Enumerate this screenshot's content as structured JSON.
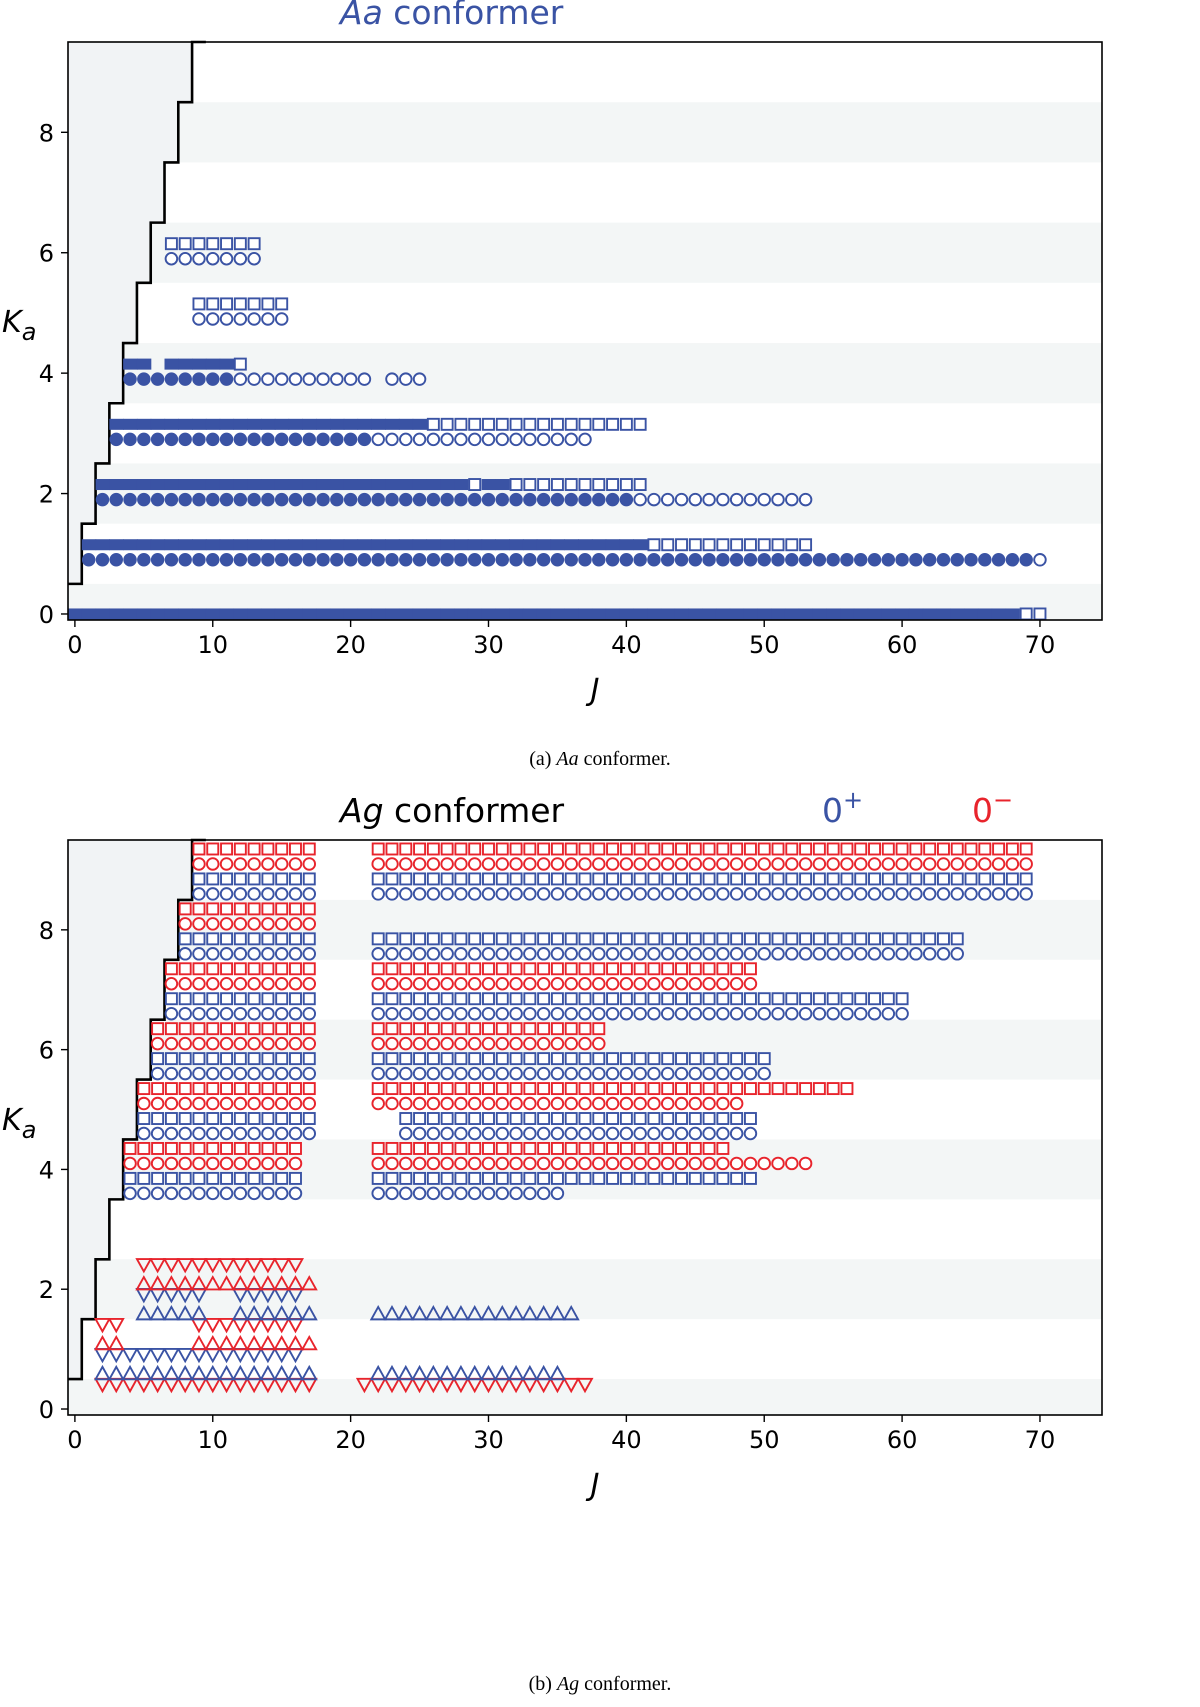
{
  "colors": {
    "blue": "#3a53a4",
    "red": "#e8242c",
    "band": "#f3f6f6",
    "left_region": "#f1f3f5"
  },
  "chart_data": [
    {
      "type": "scatter",
      "title_italic": "Aa",
      "title_rest": " conformer",
      "xlabel": "J",
      "ylabel_main": "K",
      "ylabel_sub": "a",
      "xlim": [
        -0.5,
        74.5
      ],
      "ylim": [
        -0.1,
        9.5
      ],
      "xticks": [
        0,
        10,
        20,
        30,
        40,
        50,
        60,
        70
      ],
      "yticks": [
        0,
        2,
        4,
        6,
        8
      ],
      "boundary_steps": [
        [
          0,
          0.5
        ],
        [
          1,
          1.5
        ],
        [
          2,
          2.5
        ],
        [
          3,
          3.5
        ],
        [
          4,
          4.5
        ],
        [
          5,
          5.5
        ],
        [
          6,
          6.5
        ],
        [
          7,
          7.5
        ],
        [
          8,
          8.5
        ],
        [
          9,
          9.5
        ]
      ],
      "marks": [
        {
          "m": "sq",
          "c": "blue",
          "f": 1,
          "y": 0,
          "from": 0,
          "to": 68
        },
        {
          "m": "sq",
          "c": "blue",
          "f": 0,
          "y": 0,
          "from": 69,
          "to": 70
        },
        {
          "m": "ci",
          "c": "blue",
          "f": 1,
          "y": 0.9,
          "from": 1,
          "to": 69
        },
        {
          "m": "ci",
          "c": "blue",
          "f": 0,
          "y": 0.9,
          "from": 70,
          "to": 70
        },
        {
          "m": "sq",
          "c": "blue",
          "f": 1,
          "y": 1.15,
          "from": 1,
          "to": 41
        },
        {
          "m": "sq",
          "c": "blue",
          "f": 0,
          "y": 1.15,
          "from": 42,
          "to": 53
        },
        {
          "m": "ci",
          "c": "blue",
          "f": 1,
          "y": 1.9,
          "from": 2,
          "to": 40
        },
        {
          "m": "ci",
          "c": "blue",
          "f": 0,
          "y": 1.9,
          "from": 41,
          "to": 53
        },
        {
          "m": "sq",
          "c": "blue",
          "f": 1,
          "y": 2.15,
          "from": 2,
          "to": 28
        },
        {
          "m": "sq",
          "c": "blue",
          "f": 0,
          "y": 2.15,
          "from": 29,
          "to": 29
        },
        {
          "m": "sq",
          "c": "blue",
          "f": 1,
          "y": 2.15,
          "from": 30,
          "to": 31
        },
        {
          "m": "sq",
          "c": "blue",
          "f": 0,
          "y": 2.15,
          "from": 32,
          "to": 41
        },
        {
          "m": "ci",
          "c": "blue",
          "f": 1,
          "y": 2.9,
          "from": 3,
          "to": 21
        },
        {
          "m": "ci",
          "c": "blue",
          "f": 0,
          "y": 2.9,
          "from": 22,
          "to": 37
        },
        {
          "m": "sq",
          "c": "blue",
          "f": 1,
          "y": 3.15,
          "from": 3,
          "to": 25
        },
        {
          "m": "sq",
          "c": "blue",
          "f": 0,
          "y": 3.15,
          "from": 26,
          "to": 41
        },
        {
          "m": "ci",
          "c": "blue",
          "f": 1,
          "y": 3.9,
          "from": 4,
          "to": 11
        },
        {
          "m": "ci",
          "c": "blue",
          "f": 0,
          "y": 3.9,
          "from": 12,
          "to": 21
        },
        {
          "m": "ci",
          "c": "blue",
          "f": 0,
          "y": 3.9,
          "from": 23,
          "to": 25
        },
        {
          "m": "sq",
          "c": "blue",
          "f": 1,
          "y": 4.15,
          "from": 4,
          "to": 5
        },
        {
          "m": "sq",
          "c": "blue",
          "f": 1,
          "y": 4.15,
          "from": 7,
          "to": 11
        },
        {
          "m": "sq",
          "c": "blue",
          "f": 0,
          "y": 4.15,
          "from": 12,
          "to": 12
        },
        {
          "m": "ci",
          "c": "blue",
          "f": 0,
          "y": 4.9,
          "from": 9,
          "to": 15
        },
        {
          "m": "sq",
          "c": "blue",
          "f": 0,
          "y": 5.15,
          "from": 9,
          "to": 15
        },
        {
          "m": "ci",
          "c": "blue",
          "f": 0,
          "y": 5.9,
          "from": 7,
          "to": 13
        },
        {
          "m": "sq",
          "c": "blue",
          "f": 0,
          "y": 6.15,
          "from": 7,
          "to": 13
        }
      ],
      "caption_prefix": "(a) ",
      "caption_italic": "Aa",
      "caption_rest": " conformer."
    },
    {
      "type": "scatter",
      "title_italic": "Ag",
      "title_rest": " conformer",
      "legend": [
        {
          "label": "0",
          "sup": "+",
          "color": "blue"
        },
        {
          "label": "0",
          "sup": "−",
          "color": "red"
        }
      ],
      "xlabel": "J",
      "ylabel_main": "K",
      "ylabel_sub": "a",
      "xlim": [
        -0.5,
        74.5
      ],
      "ylim": [
        -0.1,
        9.5
      ],
      "xticks": [
        0,
        10,
        20,
        30,
        40,
        50,
        60,
        70
      ],
      "yticks": [
        0,
        2,
        4,
        6,
        8
      ],
      "boundary_steps": [
        [
          0,
          0.5
        ],
        [
          1,
          1.5
        ],
        [
          2,
          2.5
        ],
        [
          3,
          3.5
        ],
        [
          4,
          4.5
        ],
        [
          5,
          5.5
        ],
        [
          6,
          6.5
        ],
        [
          7,
          7.5
        ],
        [
          8,
          8.5
        ],
        [
          9,
          9.5
        ]
      ],
      "marks": [
        {
          "m": "td",
          "c": "red",
          "f": 0,
          "y": 0.4,
          "from": 2,
          "to": 17
        },
        {
          "m": "td",
          "c": "red",
          "f": 0,
          "y": 0.4,
          "from": 21,
          "to": 37
        },
        {
          "m": "tu",
          "c": "blue",
          "f": 0,
          "y": 0.6,
          "from": 2,
          "to": 17
        },
        {
          "m": "tu",
          "c": "blue",
          "f": 0,
          "y": 0.6,
          "from": 22,
          "to": 35
        },
        {
          "m": "td",
          "c": "blue",
          "f": 0,
          "y": 0.9,
          "from": 2,
          "to": 16
        },
        {
          "m": "tu",
          "c": "red",
          "f": 0,
          "y": 1.1,
          "from": 2,
          "to": 3
        },
        {
          "m": "tu",
          "c": "red",
          "f": 0,
          "y": 1.1,
          "from": 9,
          "to": 17
        },
        {
          "m": "td",
          "c": "red",
          "f": 0,
          "y": 1.4,
          "from": 2,
          "to": 3
        },
        {
          "m": "td",
          "c": "red",
          "f": 0,
          "y": 1.4,
          "from": 9,
          "to": 16
        },
        {
          "m": "tu",
          "c": "blue",
          "f": 0,
          "y": 1.6,
          "from": 5,
          "to": 9
        },
        {
          "m": "tu",
          "c": "blue",
          "f": 0,
          "y": 1.6,
          "from": 12,
          "to": 17
        },
        {
          "m": "tu",
          "c": "blue",
          "f": 0,
          "y": 1.6,
          "from": 22,
          "to": 36
        },
        {
          "m": "td",
          "c": "blue",
          "f": 0,
          "y": 1.9,
          "from": 5,
          "to": 9
        },
        {
          "m": "td",
          "c": "blue",
          "f": 0,
          "y": 1.9,
          "from": 12,
          "to": 16
        },
        {
          "m": "tu",
          "c": "red",
          "f": 0,
          "y": 2.1,
          "from": 5,
          "to": 17
        },
        {
          "m": "td",
          "c": "red",
          "f": 0,
          "y": 2.4,
          "from": 5,
          "to": 16
        },
        {
          "m": "ci",
          "c": "blue",
          "f": 0,
          "y": 3.6,
          "from": 4,
          "to": 16
        },
        {
          "m": "ci",
          "c": "blue",
          "f": 0,
          "y": 3.6,
          "from": 22,
          "to": 35
        },
        {
          "m": "sq",
          "c": "blue",
          "f": 0,
          "y": 3.85,
          "from": 4,
          "to": 16
        },
        {
          "m": "sq",
          "c": "blue",
          "f": 0,
          "y": 3.85,
          "from": 22,
          "to": 49
        },
        {
          "m": "ci",
          "c": "red",
          "f": 0,
          "y": 4.1,
          "from": 4,
          "to": 16
        },
        {
          "m": "ci",
          "c": "red",
          "f": 0,
          "y": 4.1,
          "from": 22,
          "to": 53
        },
        {
          "m": "sq",
          "c": "red",
          "f": 0,
          "y": 4.35,
          "from": 4,
          "to": 16
        },
        {
          "m": "sq",
          "c": "red",
          "f": 0,
          "y": 4.35,
          "from": 22,
          "to": 47
        },
        {
          "m": "ci",
          "c": "blue",
          "f": 0,
          "y": 4.6,
          "from": 5,
          "to": 17
        },
        {
          "m": "ci",
          "c": "blue",
          "f": 0,
          "y": 4.6,
          "from": 24,
          "to": 49
        },
        {
          "m": "sq",
          "c": "blue",
          "f": 0,
          "y": 4.85,
          "from": 5,
          "to": 17
        },
        {
          "m": "sq",
          "c": "blue",
          "f": 0,
          "y": 4.85,
          "from": 24,
          "to": 49
        },
        {
          "m": "ci",
          "c": "red",
          "f": 0,
          "y": 5.1,
          "from": 5,
          "to": 17
        },
        {
          "m": "ci",
          "c": "red",
          "f": 0,
          "y": 5.1,
          "from": 22,
          "to": 48
        },
        {
          "m": "sq",
          "c": "red",
          "f": 0,
          "y": 5.35,
          "from": 5,
          "to": 17
        },
        {
          "m": "sq",
          "c": "red",
          "f": 0,
          "y": 5.35,
          "from": 22,
          "to": 56
        },
        {
          "m": "ci",
          "c": "blue",
          "f": 0,
          "y": 5.6,
          "from": 6,
          "to": 17
        },
        {
          "m": "ci",
          "c": "blue",
          "f": 0,
          "y": 5.6,
          "from": 22,
          "to": 50
        },
        {
          "m": "sq",
          "c": "blue",
          "f": 0,
          "y": 5.85,
          "from": 6,
          "to": 17
        },
        {
          "m": "sq",
          "c": "blue",
          "f": 0,
          "y": 5.85,
          "from": 22,
          "to": 50
        },
        {
          "m": "ci",
          "c": "red",
          "f": 0,
          "y": 6.1,
          "from": 6,
          "to": 17
        },
        {
          "m": "ci",
          "c": "red",
          "f": 0,
          "y": 6.1,
          "from": 22,
          "to": 38
        },
        {
          "m": "sq",
          "c": "red",
          "f": 0,
          "y": 6.35,
          "from": 6,
          "to": 17
        },
        {
          "m": "sq",
          "c": "red",
          "f": 0,
          "y": 6.35,
          "from": 22,
          "to": 38
        },
        {
          "m": "ci",
          "c": "blue",
          "f": 0,
          "y": 6.6,
          "from": 7,
          "to": 17
        },
        {
          "m": "ci",
          "c": "blue",
          "f": 0,
          "y": 6.6,
          "from": 22,
          "to": 60
        },
        {
          "m": "sq",
          "c": "blue",
          "f": 0,
          "y": 6.85,
          "from": 7,
          "to": 17
        },
        {
          "m": "sq",
          "c": "blue",
          "f": 0,
          "y": 6.85,
          "from": 22,
          "to": 60
        },
        {
          "m": "ci",
          "c": "red",
          "f": 0,
          "y": 7.1,
          "from": 7,
          "to": 17
        },
        {
          "m": "ci",
          "c": "red",
          "f": 0,
          "y": 7.1,
          "from": 22,
          "to": 49
        },
        {
          "m": "sq",
          "c": "red",
          "f": 0,
          "y": 7.35,
          "from": 7,
          "to": 17
        },
        {
          "m": "sq",
          "c": "red",
          "f": 0,
          "y": 7.35,
          "from": 22,
          "to": 49
        },
        {
          "m": "ci",
          "c": "blue",
          "f": 0,
          "y": 7.6,
          "from": 8,
          "to": 17
        },
        {
          "m": "ci",
          "c": "blue",
          "f": 0,
          "y": 7.6,
          "from": 22,
          "to": 64
        },
        {
          "m": "sq",
          "c": "blue",
          "f": 0,
          "y": 7.85,
          "from": 8,
          "to": 17
        },
        {
          "m": "sq",
          "c": "blue",
          "f": 0,
          "y": 7.85,
          "from": 22,
          "to": 64
        },
        {
          "m": "ci",
          "c": "red",
          "f": 0,
          "y": 8.1,
          "from": 8,
          "to": 17
        },
        {
          "m": "sq",
          "c": "red",
          "f": 0,
          "y": 8.35,
          "from": 8,
          "to": 17
        },
        {
          "m": "ci",
          "c": "blue",
          "f": 0,
          "y": 8.6,
          "from": 9,
          "to": 17
        },
        {
          "m": "ci",
          "c": "blue",
          "f": 0,
          "y": 8.6,
          "from": 22,
          "to": 69
        },
        {
          "m": "sq",
          "c": "blue",
          "f": 0,
          "y": 8.85,
          "from": 9,
          "to": 17
        },
        {
          "m": "sq",
          "c": "blue",
          "f": 0,
          "y": 8.85,
          "from": 22,
          "to": 69
        },
        {
          "m": "ci",
          "c": "red",
          "f": 0,
          "y": 9.1,
          "from": 9,
          "to": 17
        },
        {
          "m": "ci",
          "c": "red",
          "f": 0,
          "y": 9.1,
          "from": 22,
          "to": 69
        },
        {
          "m": "sq",
          "c": "red",
          "f": 0,
          "y": 9.35,
          "from": 9,
          "to": 17
        },
        {
          "m": "sq",
          "c": "red",
          "f": 0,
          "y": 9.35,
          "from": 22,
          "to": 69
        }
      ],
      "caption_prefix": "(b) ",
      "caption_italic": "Ag",
      "caption_rest": " conformer."
    }
  ]
}
